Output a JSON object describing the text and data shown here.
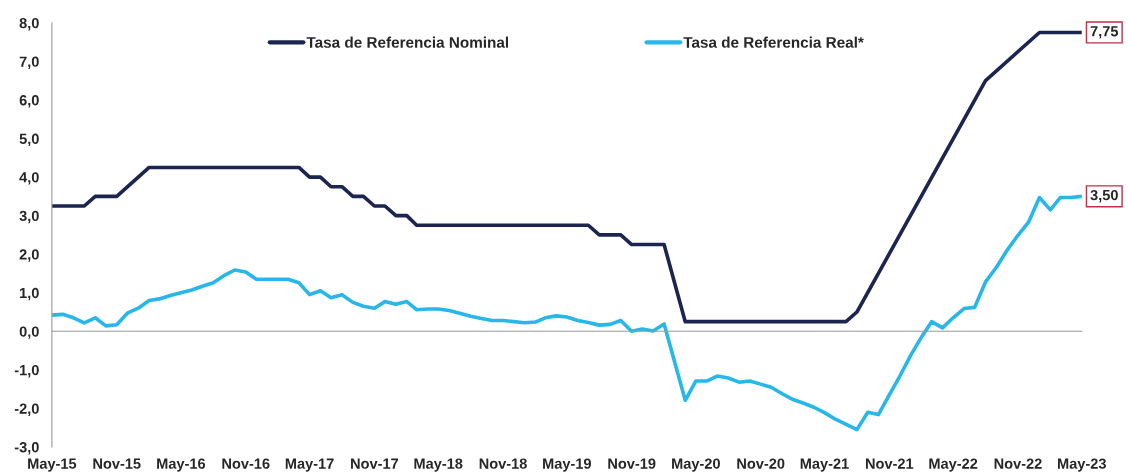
{
  "chart_data": {
    "type": "line",
    "series": [
      {
        "name": "Tasa de Referencia Nominal",
        "color": "#1b2550",
        "x": [
          "2015-05",
          "2015-08",
          "2015-09",
          "2015-11",
          "2016-02",
          "2017-04",
          "2017-05",
          "2017-06",
          "2017-07",
          "2017-08",
          "2017-09",
          "2017-10",
          "2017-11",
          "2017-12",
          "2018-01",
          "2018-02",
          "2018-03",
          "2019-07",
          "2019-08",
          "2019-10",
          "2019-11",
          "2020-02",
          "2020-04",
          "2021-07",
          "2021-08",
          "2022-08",
          "2023-01",
          "2023-05"
        ],
        "values": [
          3.25,
          3.25,
          3.5,
          3.5,
          4.25,
          4.25,
          4.0,
          4.0,
          3.75,
          3.75,
          3.5,
          3.5,
          3.25,
          3.25,
          3.0,
          3.0,
          2.75,
          2.75,
          2.5,
          2.5,
          2.25,
          2.25,
          0.25,
          0.25,
          0.5,
          6.5,
          7.75,
          7.75
        ]
      },
      {
        "name": "Tasa de Referencia Real*",
        "color": "#29b6e8",
        "x": [
          "2015-05",
          "2015-06",
          "2015-07",
          "2015-08",
          "2015-09",
          "2015-10",
          "2015-11",
          "2015-12",
          "2016-01",
          "2016-02",
          "2016-03",
          "2016-04",
          "2016-05",
          "2016-06",
          "2016-07",
          "2016-08",
          "2016-09",
          "2016-10",
          "2016-11",
          "2016-12",
          "2017-01",
          "2017-02",
          "2017-03",
          "2017-04",
          "2017-05",
          "2017-06",
          "2017-07",
          "2017-08",
          "2017-09",
          "2017-10",
          "2017-11",
          "2017-12",
          "2018-01",
          "2018-02",
          "2018-03",
          "2018-04",
          "2018-05",
          "2018-06",
          "2018-07",
          "2018-08",
          "2018-09",
          "2018-10",
          "2018-11",
          "2018-12",
          "2019-01",
          "2019-02",
          "2019-03",
          "2019-04",
          "2019-05",
          "2019-06",
          "2019-07",
          "2019-08",
          "2019-09",
          "2019-10",
          "2019-11",
          "2019-12",
          "2020-01",
          "2020-02",
          "2020-04",
          "2020-05",
          "2020-06",
          "2020-07",
          "2020-08",
          "2020-09",
          "2020-10",
          "2020-11",
          "2020-12",
          "2021-01",
          "2021-02",
          "2021-03",
          "2021-04",
          "2021-05",
          "2021-06",
          "2021-08",
          "2021-09",
          "2021-10",
          "2021-11",
          "2021-12",
          "2022-01",
          "2022-02",
          "2022-03",
          "2022-04",
          "2022-05",
          "2022-06",
          "2022-07",
          "2022-08",
          "2022-09",
          "2022-10",
          "2022-11",
          "2022-12",
          "2023-01",
          "2023-02",
          "2023-03",
          "2023-04",
          "2023-05"
        ],
        "values": [
          0.42,
          0.44,
          0.35,
          0.22,
          0.35,
          0.14,
          0.17,
          0.47,
          0.6,
          0.8,
          0.84,
          0.93,
          1.0,
          1.07,
          1.17,
          1.26,
          1.45,
          1.59,
          1.54,
          1.35,
          1.35,
          1.35,
          1.35,
          1.26,
          0.95,
          1.05,
          0.87,
          0.95,
          0.75,
          0.65,
          0.6,
          0.77,
          0.7,
          0.77,
          0.56,
          0.58,
          0.58,
          0.54,
          0.47,
          0.39,
          0.33,
          0.28,
          0.28,
          0.25,
          0.22,
          0.24,
          0.35,
          0.4,
          0.37,
          0.28,
          0.23,
          0.16,
          0.18,
          0.28,
          0.0,
          0.06,
          0.01,
          0.19,
          -1.79,
          -1.29,
          -1.29,
          -1.16,
          -1.21,
          -1.32,
          -1.29,
          -1.37,
          -1.45,
          -1.62,
          -1.77,
          -1.86,
          -1.97,
          -2.11,
          -2.28,
          -2.55,
          -2.1,
          -2.16,
          -1.65,
          -1.16,
          -0.62,
          -0.14,
          0.25,
          0.09,
          0.35,
          0.59,
          0.62,
          1.28,
          1.66,
          2.1,
          2.49,
          2.83,
          3.47,
          3.15,
          3.47,
          3.47,
          3.5
        ]
      }
    ],
    "annotations": [
      {
        "text": "7,75",
        "x": "2023-05",
        "y": 7.75
      },
      {
        "text": "3,50",
        "x": "2023-05",
        "y": 3.5
      }
    ],
    "xlim": [
      "2015-05",
      "2023-05"
    ],
    "xticks": [
      {
        "value": "2015-05",
        "label": "May-15"
      },
      {
        "value": "2015-11",
        "label": "Nov-15"
      },
      {
        "value": "2016-05",
        "label": "May-16"
      },
      {
        "value": "2016-11",
        "label": "Nov-16"
      },
      {
        "value": "2017-05",
        "label": "May-17"
      },
      {
        "value": "2017-11",
        "label": "Nov-17"
      },
      {
        "value": "2018-05",
        "label": "May-18"
      },
      {
        "value": "2018-11",
        "label": "Nov-18"
      },
      {
        "value": "2019-05",
        "label": "May-19"
      },
      {
        "value": "2019-11",
        "label": "Nov-19"
      },
      {
        "value": "2020-05",
        "label": "May-20"
      },
      {
        "value": "2020-11",
        "label": "Nov-20"
      },
      {
        "value": "2021-05",
        "label": "May-21"
      },
      {
        "value": "2021-11",
        "label": "Nov-21"
      },
      {
        "value": "2022-05",
        "label": "May-22"
      },
      {
        "value": "2022-11",
        "label": "Nov-22"
      },
      {
        "value": "2023-05",
        "label": "May-23"
      }
    ],
    "ylim": [
      -3,
      8
    ],
    "yticks": [
      {
        "value": -3,
        "label": "-3,0"
      },
      {
        "value": -2,
        "label": "-2,0"
      },
      {
        "value": -1,
        "label": "-1,0"
      },
      {
        "value": 0,
        "label": "0,0"
      },
      {
        "value": 1,
        "label": "1,0"
      },
      {
        "value": 2,
        "label": "2,0"
      },
      {
        "value": 3,
        "label": "3,0"
      },
      {
        "value": 4,
        "label": "4,0"
      },
      {
        "value": 5,
        "label": "5,0"
      },
      {
        "value": 6,
        "label": "6,0"
      },
      {
        "value": 7,
        "label": "7,0"
      },
      {
        "value": 8,
        "label": "8,0"
      }
    ],
    "legend": "top",
    "line_style": "solid",
    "marker": "none"
  }
}
